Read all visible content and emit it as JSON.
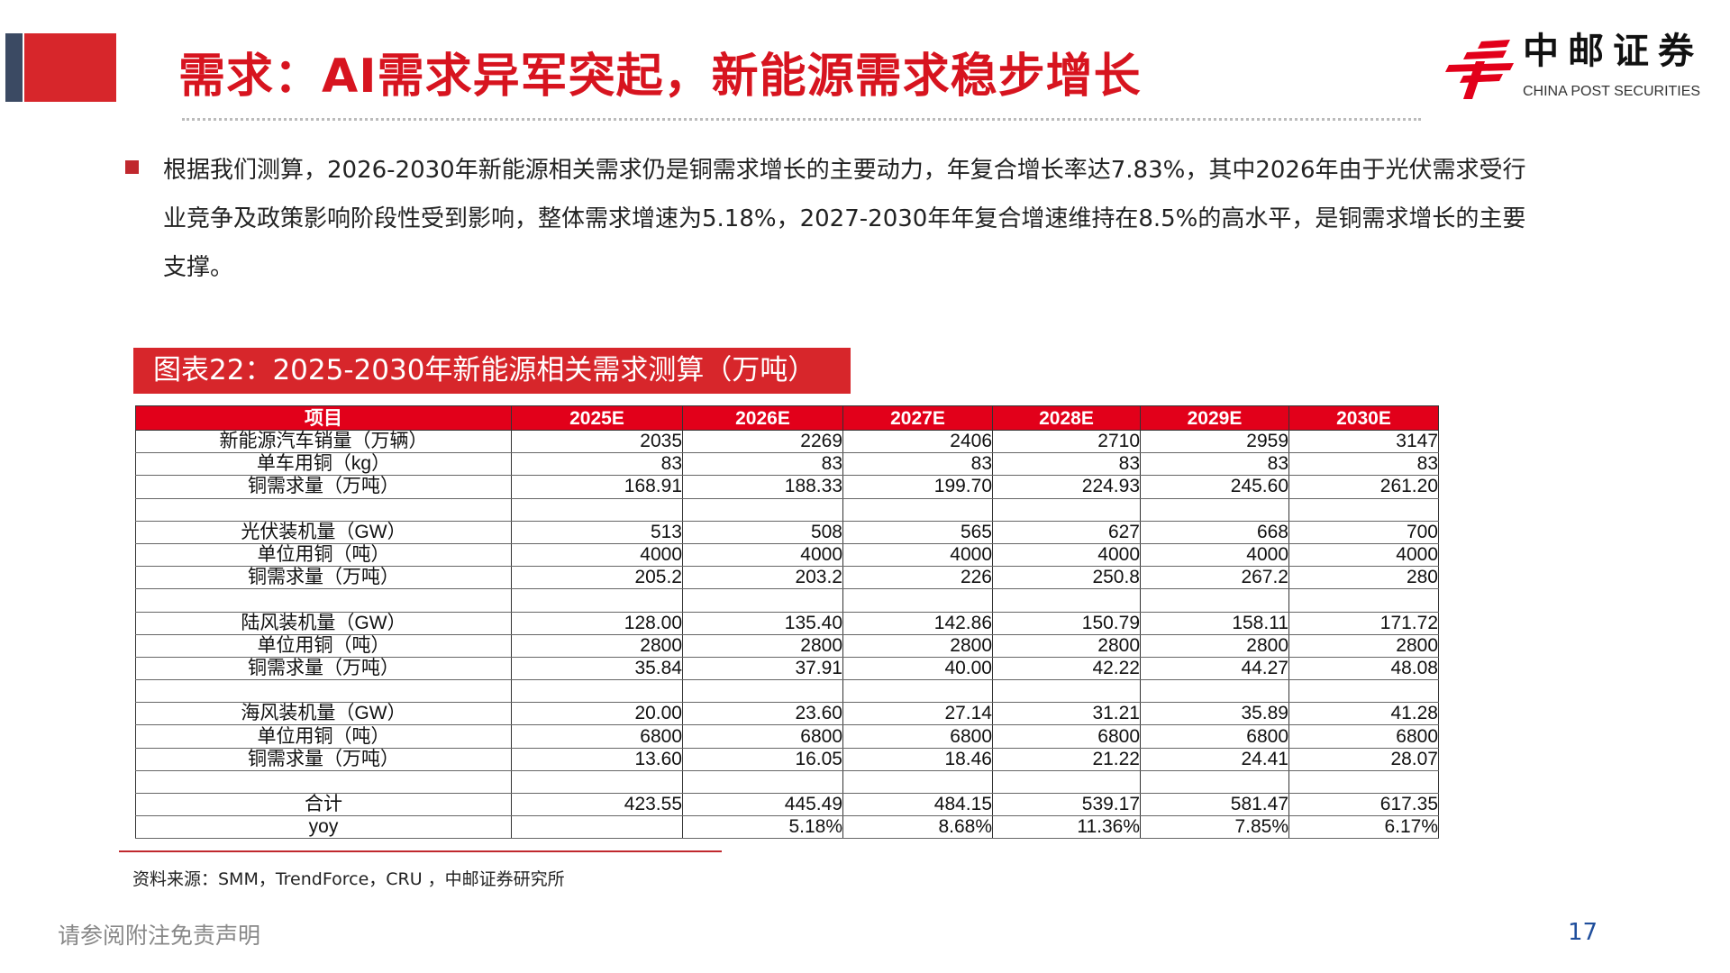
{
  "header": {
    "title": "需求：AI需求异军突起，新能源需求稳步增长"
  },
  "logo": {
    "cn": "中邮证券",
    "en": "CHINA POST SECURITIES",
    "accent": "#e2001a"
  },
  "body": {
    "paragraph": "根据我们测算，2026-2030年新能源相关需求仍是铜需求增长的主要动力，年复合增长率达7.83%，其中2026年由于光伏需求受行业竞争及政策影响阶段性受到影响，整体需求增速为5.18%，2027-2030年年复合增速维持在8.5%的高水平，是铜需求增长的主要支撑。"
  },
  "chart": {
    "title": "图表22：2025-2030年新能源相关需求测算（万吨）"
  },
  "table": {
    "headers": [
      "项目",
      "2025E",
      "2026E",
      "2027E",
      "2028E",
      "2029E",
      "2030E"
    ],
    "rows": [
      [
        "新能源汽车销量（万辆）",
        "2035",
        "2269",
        "2406",
        "2710",
        "2959",
        "3147"
      ],
      [
        "单车用铜（kg）",
        "83",
        "83",
        "83",
        "83",
        "83",
        "83"
      ],
      [
        "铜需求量（万吨）",
        "168.91",
        "188.33",
        "199.70",
        "224.93",
        "245.60",
        "261.20"
      ],
      [
        "",
        "",
        "",
        "",
        "",
        "",
        ""
      ],
      [
        "光伏装机量（GW）",
        "513",
        "508",
        "565",
        "627",
        "668",
        "700"
      ],
      [
        "单位用铜（吨）",
        "4000",
        "4000",
        "4000",
        "4000",
        "4000",
        "4000"
      ],
      [
        "铜需求量（万吨）",
        "205.2",
        "203.2",
        "226",
        "250.8",
        "267.2",
        "280"
      ],
      [
        "",
        "",
        "",
        "",
        "",
        "",
        ""
      ],
      [
        "陆风装机量（GW）",
        "128.00",
        "135.40",
        "142.86",
        "150.79",
        "158.11",
        "171.72"
      ],
      [
        "单位用铜（吨）",
        "2800",
        "2800",
        "2800",
        "2800",
        "2800",
        "2800"
      ],
      [
        "铜需求量（万吨）",
        "35.84",
        "37.91",
        "40.00",
        "42.22",
        "44.27",
        "48.08"
      ],
      [
        "",
        "",
        "",
        "",
        "",
        "",
        ""
      ],
      [
        "海风装机量（GW）",
        "20.00",
        "23.60",
        "27.14",
        "31.21",
        "35.89",
        "41.28"
      ],
      [
        "单位用铜（吨）",
        "6800",
        "6800",
        "6800",
        "6800",
        "6800",
        "6800"
      ],
      [
        "铜需求量（万吨）",
        "13.60",
        "16.05",
        "18.46",
        "21.22",
        "24.41",
        "28.07"
      ],
      [
        "",
        "",
        "",
        "",
        "",
        "",
        ""
      ],
      [
        "合计",
        "423.55",
        "445.49",
        "484.15",
        "539.17",
        "581.47",
        "617.35"
      ],
      [
        "yoy",
        "",
        "5.18%",
        "8.68%",
        "11.36%",
        "7.85%",
        "6.17%"
      ]
    ]
  },
  "source": "资料来源：SMM，TrendForce，CRU ，中邮证券研究所",
  "footer": {
    "disclaimer": "请参阅附注免责声明",
    "page": "17"
  }
}
